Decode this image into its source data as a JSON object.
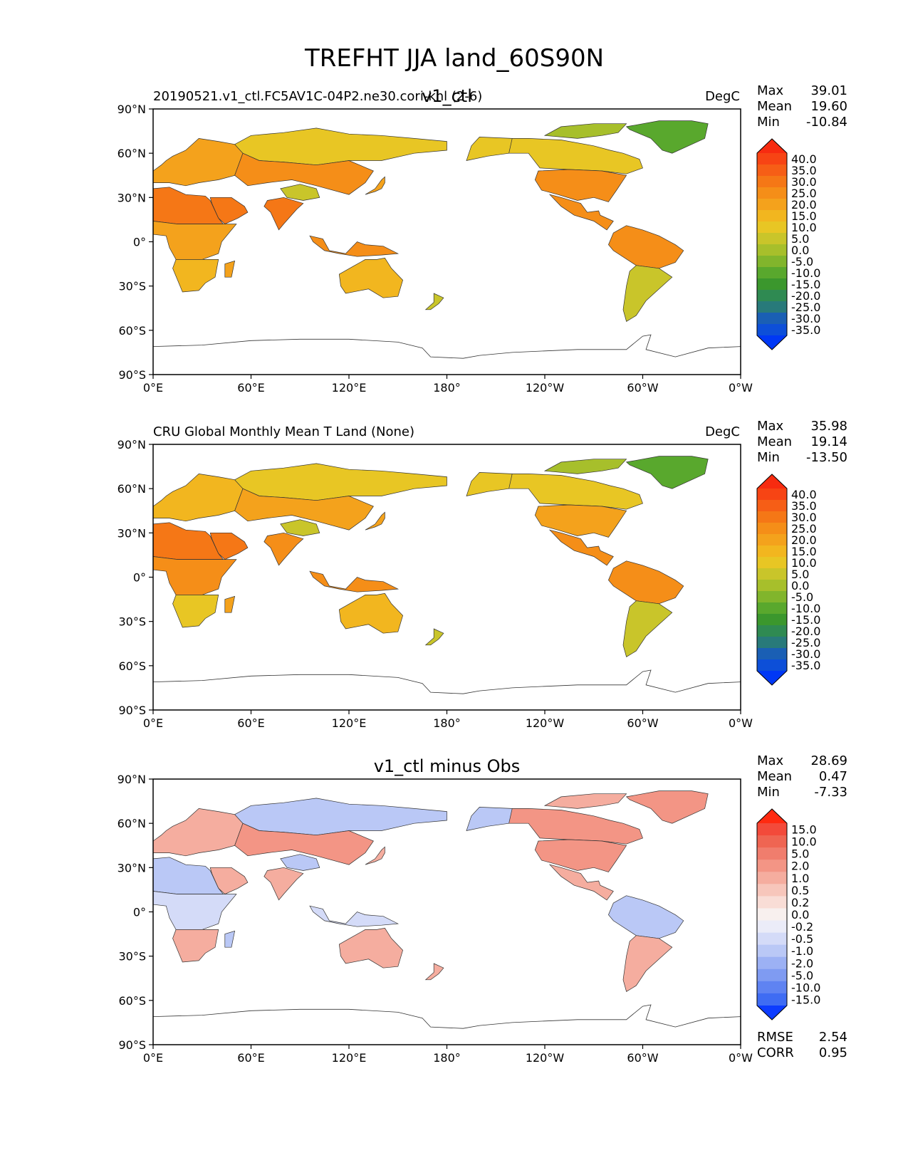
{
  "figure": {
    "title": "TREFHT JJA land_60S90N"
  },
  "colors": {
    "ocean": "#ffffff",
    "coast": "#333333"
  },
  "axes": {
    "xticks": [
      "0°E",
      "60°E",
      "120°E",
      "180°",
      "120°W",
      "60°W",
      "0°W"
    ],
    "yticks": [
      "90°N",
      "60°N",
      "30°N",
      "0°",
      "30°S",
      "60°S",
      "90°S"
    ],
    "xlim": [
      0,
      360
    ],
    "ylim": [
      -90,
      90
    ]
  },
  "chart_data": [
    {
      "type": "heatmap",
      "title": "v1_ctl",
      "left_label": "20190521.v1_ctl.FC5AV1C-04P2.ne30.cori-knl (2-6)",
      "units": "DegC",
      "stats": [
        {
          "label": "Max",
          "value": "39.01"
        },
        {
          "label": "Mean",
          "value": "19.60"
        },
        {
          "label": "Min",
          "value": "-10.84"
        }
      ],
      "colorbar": {
        "levels": [
          "40.0",
          "35.0",
          "30.0",
          "25.0",
          "20.0",
          "15.0",
          "10.0",
          "5.0",
          "0.0",
          "-5.0",
          "-10.0",
          "-15.0",
          "-20.0",
          "-25.0",
          "-30.0",
          "-35.0"
        ],
        "colors": [
          "#f72b10",
          "#f74414",
          "#f65e16",
          "#f57716",
          "#f58e18",
          "#f4a21c",
          "#f2b61f",
          "#e8c624",
          "#c9c52a",
          "#a7bf2b",
          "#81b52c",
          "#59a82d",
          "#3b972d",
          "#2f8a52",
          "#287a7a",
          "#1a5fb4",
          "#0d4fd8",
          "#0038f5"
        ]
      },
      "field": "model",
      "regions": [
        {
          "name": "Europe",
          "value": 20
        },
        {
          "name": "Siberia",
          "value": 13
        },
        {
          "name": "Central Asia",
          "value": 26
        },
        {
          "name": "Tibet",
          "value": 8
        },
        {
          "name": "India",
          "value": 30
        },
        {
          "name": "Arabia",
          "value": 34
        },
        {
          "name": "Sahara",
          "value": 33
        },
        {
          "name": "Central Africa",
          "value": 24
        },
        {
          "name": "Southern Africa",
          "value": 15
        },
        {
          "name": "Madagascar",
          "value": 20
        },
        {
          "name": "Australia",
          "value": 18
        },
        {
          "name": "New Zealand",
          "value": 8
        },
        {
          "name": "Alaska",
          "value": 11
        },
        {
          "name": "Canada",
          "value": 14
        },
        {
          "name": "United States",
          "value": 25
        },
        {
          "name": "Mexico",
          "value": 28
        },
        {
          "name": "Amazon",
          "value": 28
        },
        {
          "name": "Patagonia",
          "value": 6
        },
        {
          "name": "Greenland",
          "value": -8
        },
        {
          "name": "Arctic Islands",
          "value": 2
        },
        {
          "name": "Maritime Continent",
          "value": 27
        },
        {
          "name": "Japan",
          "value": 21
        }
      ]
    },
    {
      "type": "heatmap",
      "title": "",
      "left_label": "CRU Global Monthly Mean T Land (None)",
      "units": "DegC",
      "stats": [
        {
          "label": "Max",
          "value": "35.98"
        },
        {
          "label": "Mean",
          "value": "19.14"
        },
        {
          "label": "Min",
          "value": "-13.50"
        }
      ],
      "colorbar": {
        "levels": [
          "40.0",
          "35.0",
          "30.0",
          "25.0",
          "20.0",
          "15.0",
          "10.0",
          "5.0",
          "0.0",
          "-5.0",
          "-10.0",
          "-15.0",
          "-20.0",
          "-25.0",
          "-30.0",
          "-35.0"
        ],
        "colors": [
          "#f72b10",
          "#f74414",
          "#f65e16",
          "#f57716",
          "#f58e18",
          "#f4a21c",
          "#f2b61f",
          "#e8c624",
          "#c9c52a",
          "#a7bf2b",
          "#81b52c",
          "#59a82d",
          "#3b972d",
          "#2f8a52",
          "#287a7a",
          "#1a5fb4",
          "#0d4fd8",
          "#0038f5"
        ]
      },
      "field": "obs",
      "regions": [
        {
          "name": "Europe",
          "value": 19
        },
        {
          "name": "Siberia",
          "value": 13
        },
        {
          "name": "Central Asia",
          "value": 24
        },
        {
          "name": "Tibet",
          "value": 9
        },
        {
          "name": "India",
          "value": 29
        },
        {
          "name": "Arabia",
          "value": 33
        },
        {
          "name": "Sahara",
          "value": 32
        },
        {
          "name": "Central Africa",
          "value": 25
        },
        {
          "name": "Southern Africa",
          "value": 14
        },
        {
          "name": "Madagascar",
          "value": 21
        },
        {
          "name": "Australia",
          "value": 17
        },
        {
          "name": "New Zealand",
          "value": 7
        },
        {
          "name": "Alaska",
          "value": 10
        },
        {
          "name": "Canada",
          "value": 12
        },
        {
          "name": "United States",
          "value": 23
        },
        {
          "name": "Mexico",
          "value": 27
        },
        {
          "name": "Amazon",
          "value": 27
        },
        {
          "name": "Patagonia",
          "value": 5
        },
        {
          "name": "Greenland",
          "value": -9
        },
        {
          "name": "Arctic Islands",
          "value": 1
        },
        {
          "name": "Maritime Continent",
          "value": 27
        },
        {
          "name": "Japan",
          "value": 21
        }
      ]
    },
    {
      "type": "heatmap",
      "title": "v1_ctl minus Obs",
      "left_label": "",
      "units": "",
      "stats": [
        {
          "label": "Max",
          "value": "28.69"
        },
        {
          "label": "Mean",
          "value": "0.47"
        },
        {
          "label": "Min",
          "value": "-7.33"
        }
      ],
      "extra_stats": [
        {
          "label": "RMSE",
          "value": "2.54"
        },
        {
          "label": "CORR",
          "value": "0.95"
        }
      ],
      "colorbar": {
        "levels": [
          "15.0",
          "10.0",
          "5.0",
          "2.0",
          "1.0",
          "0.5",
          "0.2",
          "0.0",
          "-0.2",
          "-0.5",
          "-1.0",
          "-2.0",
          "-5.0",
          "-10.0",
          "-15.0"
        ],
        "colors": [
          "#ff2a10",
          "#f34a3a",
          "#ef6552",
          "#f07d6d",
          "#f39585",
          "#f5ad9f",
          "#f7c6bb",
          "#f9ddd6",
          "#f8f0ee",
          "#ebecf8",
          "#d4dbf8",
          "#bac8f6",
          "#9cb1f4",
          "#7f9bf2",
          "#5f83f2",
          "#3f6cf3",
          "#0d3cff"
        ]
      },
      "field": "diff",
      "regions": [
        {
          "name": "Europe",
          "value": 1
        },
        {
          "name": "Siberia",
          "value": -1
        },
        {
          "name": "Central Asia",
          "value": 2
        },
        {
          "name": "Tibet",
          "value": -1
        },
        {
          "name": "India",
          "value": 1
        },
        {
          "name": "Arabia",
          "value": 1
        },
        {
          "name": "Sahara",
          "value": -1
        },
        {
          "name": "Central Africa",
          "value": -0.5
        },
        {
          "name": "Southern Africa",
          "value": 1
        },
        {
          "name": "Madagascar",
          "value": -1
        },
        {
          "name": "Australia",
          "value": 1
        },
        {
          "name": "New Zealand",
          "value": 1
        },
        {
          "name": "Alaska",
          "value": -1
        },
        {
          "name": "Canada",
          "value": 2
        },
        {
          "name": "United States",
          "value": 2
        },
        {
          "name": "Mexico",
          "value": 1
        },
        {
          "name": "Amazon",
          "value": -1
        },
        {
          "name": "Patagonia",
          "value": 1
        },
        {
          "name": "Greenland",
          "value": 2
        },
        {
          "name": "Arctic Islands",
          "value": 1
        },
        {
          "name": "Maritime Continent",
          "value": -0.5
        },
        {
          "name": "Japan",
          "value": 1
        }
      ]
    }
  ]
}
